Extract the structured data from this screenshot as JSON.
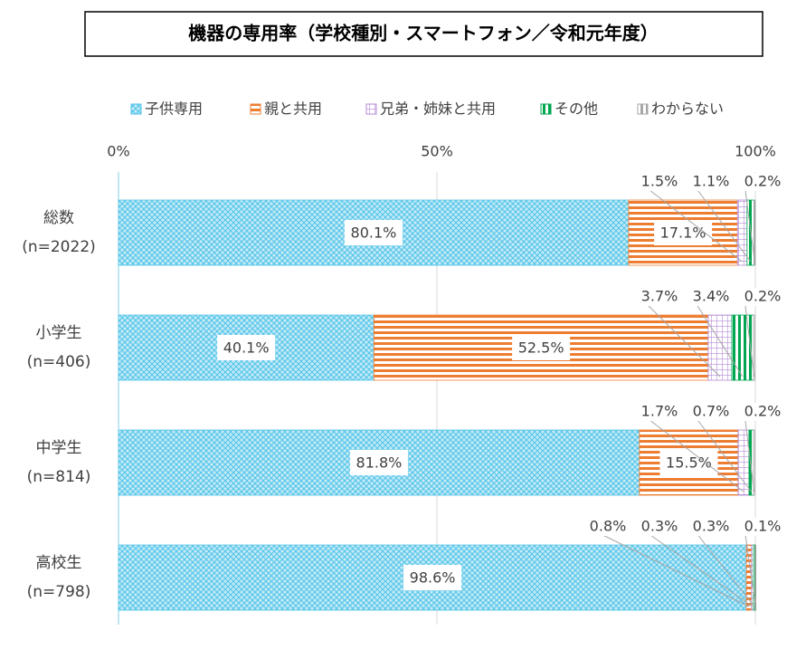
{
  "chart_data": {
    "type": "stacked-barh",
    "title": "機器の専用率（学校種別・スマートフォン／令和元年度）",
    "categories": [
      "総数\n(n=2022)",
      "小学生\n(n=406)",
      "中学生\n(n=814)",
      "高校生\n(n=798)"
    ],
    "series": [
      {
        "name": "子供専用",
        "color": "#4fc3e8",
        "values": [
          80.1,
          40.1,
          81.8,
          98.6
        ],
        "value_labels": [
          "80.1%",
          "40.1%",
          "81.8%",
          "98.6%"
        ]
      },
      {
        "name": "親と共用",
        "color": "#ed7d31",
        "values": [
          17.1,
          52.5,
          15.5,
          0.8
        ],
        "value_labels": [
          "17.1%",
          "52.5%",
          "15.5%",
          "0.8%"
        ]
      },
      {
        "name": "兄弟・姉妹と共用",
        "color": "#b58ad6",
        "values": [
          1.5,
          3.7,
          1.7,
          0.3
        ],
        "value_labels": [
          "1.5%",
          "3.7%",
          "1.7%",
          "0.3%"
        ]
      },
      {
        "name": "その他",
        "color": "#00a650",
        "values": [
          1.1,
          3.4,
          0.7,
          0.3
        ],
        "value_labels": [
          "1.1%",
          "3.4%",
          "0.7%",
          "0.3%"
        ]
      },
      {
        "name": "わからない",
        "color": "#a6a6a6",
        "values": [
          0.2,
          0.2,
          0.2,
          0.1
        ],
        "value_labels": [
          "0.2%",
          "0.2%",
          "0.2%",
          "0.1%"
        ]
      }
    ],
    "xlim": [
      0,
      100
    ],
    "xticks": [
      {
        "value": 0,
        "label": "0%"
      },
      {
        "value": 50,
        "label": "50%"
      },
      {
        "value": 100,
        "label": "100%"
      }
    ],
    "grid": true,
    "legend": "top"
  }
}
